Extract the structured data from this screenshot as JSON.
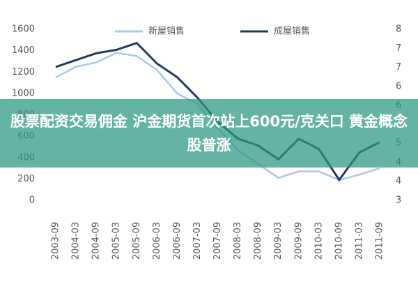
{
  "chart_data": {
    "type": "line",
    "overlay_title": "股票配资交易佣金 沪金期货首次站上600元/克关口 黄金概念股普涨",
    "categories": [
      "2003-09",
      "2004-03",
      "2004-09",
      "2005-03",
      "2005-09",
      "2006-03",
      "2006-09",
      "2007-03",
      "2007-09",
      "2008-03",
      "2008-09",
      "2009-03",
      "2009-09",
      "2010-03",
      "2010-09",
      "2011-03",
      "2011-09"
    ],
    "series": [
      {
        "name": "新屋销售",
        "color": "#a9c8ea",
        "values": [
          1150,
          1250,
          1290,
          1380,
          1350,
          1220,
          1000,
          900,
          670,
          470,
          340,
          210,
          270,
          270,
          190,
          240,
          300
        ]
      },
      {
        "name": "成屋销售",
        "color": "#1f3a5f",
        "axis": "y2",
        "values": [
          6.9,
          7.1,
          7.3,
          7.4,
          7.6,
          7.0,
          6.6,
          6.0,
          5.3,
          4.8,
          4.6,
          4.2,
          4.8,
          4.5,
          3.6,
          4.4,
          4.7
        ]
      }
    ],
    "ylim": [
      0,
      1600
    ],
    "yticks": [
      0,
      200,
      400,
      600,
      800,
      1000,
      1200,
      1400,
      1600
    ],
    "y2lim": [
      3,
      8
    ],
    "y2ticks": [
      3,
      {
        "value": 3.56,
        "label": "4"
      },
      {
        "value": 4.11,
        "label": "4"
      },
      {
        "value": 4.67,
        "label": "5"
      },
      {
        "value": 5.22,
        "label": "5"
      },
      {
        "value": 5.78,
        "label": "6"
      },
      {
        "value": 6.33,
        "label": "6"
      },
      {
        "value": 6.89,
        "label": "7"
      },
      {
        "value": 7.44,
        "label": "7"
      },
      8
    ]
  }
}
